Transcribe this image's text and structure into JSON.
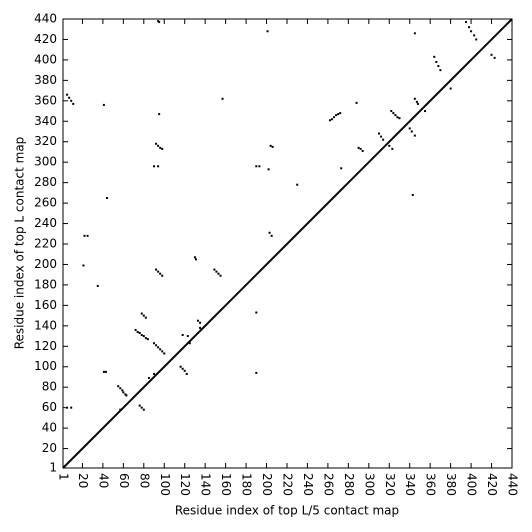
{
  "chart_data": {
    "type": "scatter",
    "x_label": "Residue index of top L/5 contact map",
    "y_label": "Residue index of top L contact map",
    "xlim": [
      1,
      440
    ],
    "ylim": [
      1,
      440
    ],
    "xticks": [
      1,
      20,
      40,
      60,
      80,
      100,
      120,
      140,
      160,
      180,
      200,
      220,
      240,
      260,
      280,
      300,
      320,
      340,
      360,
      380,
      400,
      420,
      440
    ],
    "yticks": [
      1,
      20,
      40,
      60,
      80,
      100,
      120,
      140,
      160,
      180,
      200,
      220,
      240,
      260,
      280,
      300,
      320,
      340,
      360,
      380,
      400,
      420,
      440
    ],
    "color": "#000000",
    "x": [
      94,
      95,
      5,
      7,
      9,
      11,
      41,
      95,
      92,
      94,
      96,
      98,
      90,
      94,
      44,
      22,
      25,
      21,
      35,
      92,
      94,
      96,
      98,
      78,
      80,
      82,
      72,
      74,
      76,
      78,
      80,
      82,
      84,
      90,
      92,
      94,
      96,
      98,
      100,
      41,
      43,
      55,
      57,
      59,
      60,
      62,
      63,
      76,
      78,
      80,
      5,
      9,
      116,
      118,
      120,
      122,
      118,
      123,
      130,
      131,
      133,
      135,
      149,
      151,
      153,
      155,
      157,
      190,
      193,
      190,
      190,
      201,
      202,
      204,
      206,
      203,
      205,
      230,
      262,
      264,
      266,
      268,
      270,
      272,
      288,
      273,
      290,
      292,
      294,
      310,
      312,
      314,
      322,
      324,
      326,
      328,
      330,
      320,
      323,
      340,
      342,
      345,
      345,
      347,
      348,
      345,
      364,
      366,
      368,
      370,
      380,
      395,
      398,
      400,
      403,
      405,
      420,
      423,
      355,
      343,
      135,
      125,
      57,
      85,
      90
    ],
    "y": [
      438,
      437,
      366,
      363,
      360,
      357,
      356,
      347,
      318,
      316,
      314,
      313,
      296,
      296,
      265,
      228,
      228,
      199,
      179,
      195,
      193,
      191,
      189,
      152,
      150,
      148,
      136,
      134,
      133,
      131,
      130,
      128,
      127,
      123,
      121,
      119,
      117,
      115,
      113,
      95,
      95,
      81,
      79,
      77,
      75,
      73,
      72,
      62,
      60,
      58,
      60,
      60,
      100,
      98,
      96,
      93,
      131,
      130,
      207,
      205,
      145,
      143,
      195,
      193,
      191,
      189,
      362,
      296,
      296,
      153,
      94,
      428,
      293,
      316,
      315,
      231,
      228,
      278,
      341,
      342,
      344,
      346,
      347,
      348,
      358,
      294,
      314,
      313,
      311,
      328,
      325,
      322,
      350,
      348,
      346,
      344,
      343,
      316,
      313,
      333,
      330,
      326,
      362,
      359,
      357,
      426,
      403,
      398,
      394,
      390,
      372,
      437,
      432,
      428,
      424,
      420,
      405,
      402,
      350,
      268,
      138,
      123,
      58,
      89,
      93
    ]
  }
}
